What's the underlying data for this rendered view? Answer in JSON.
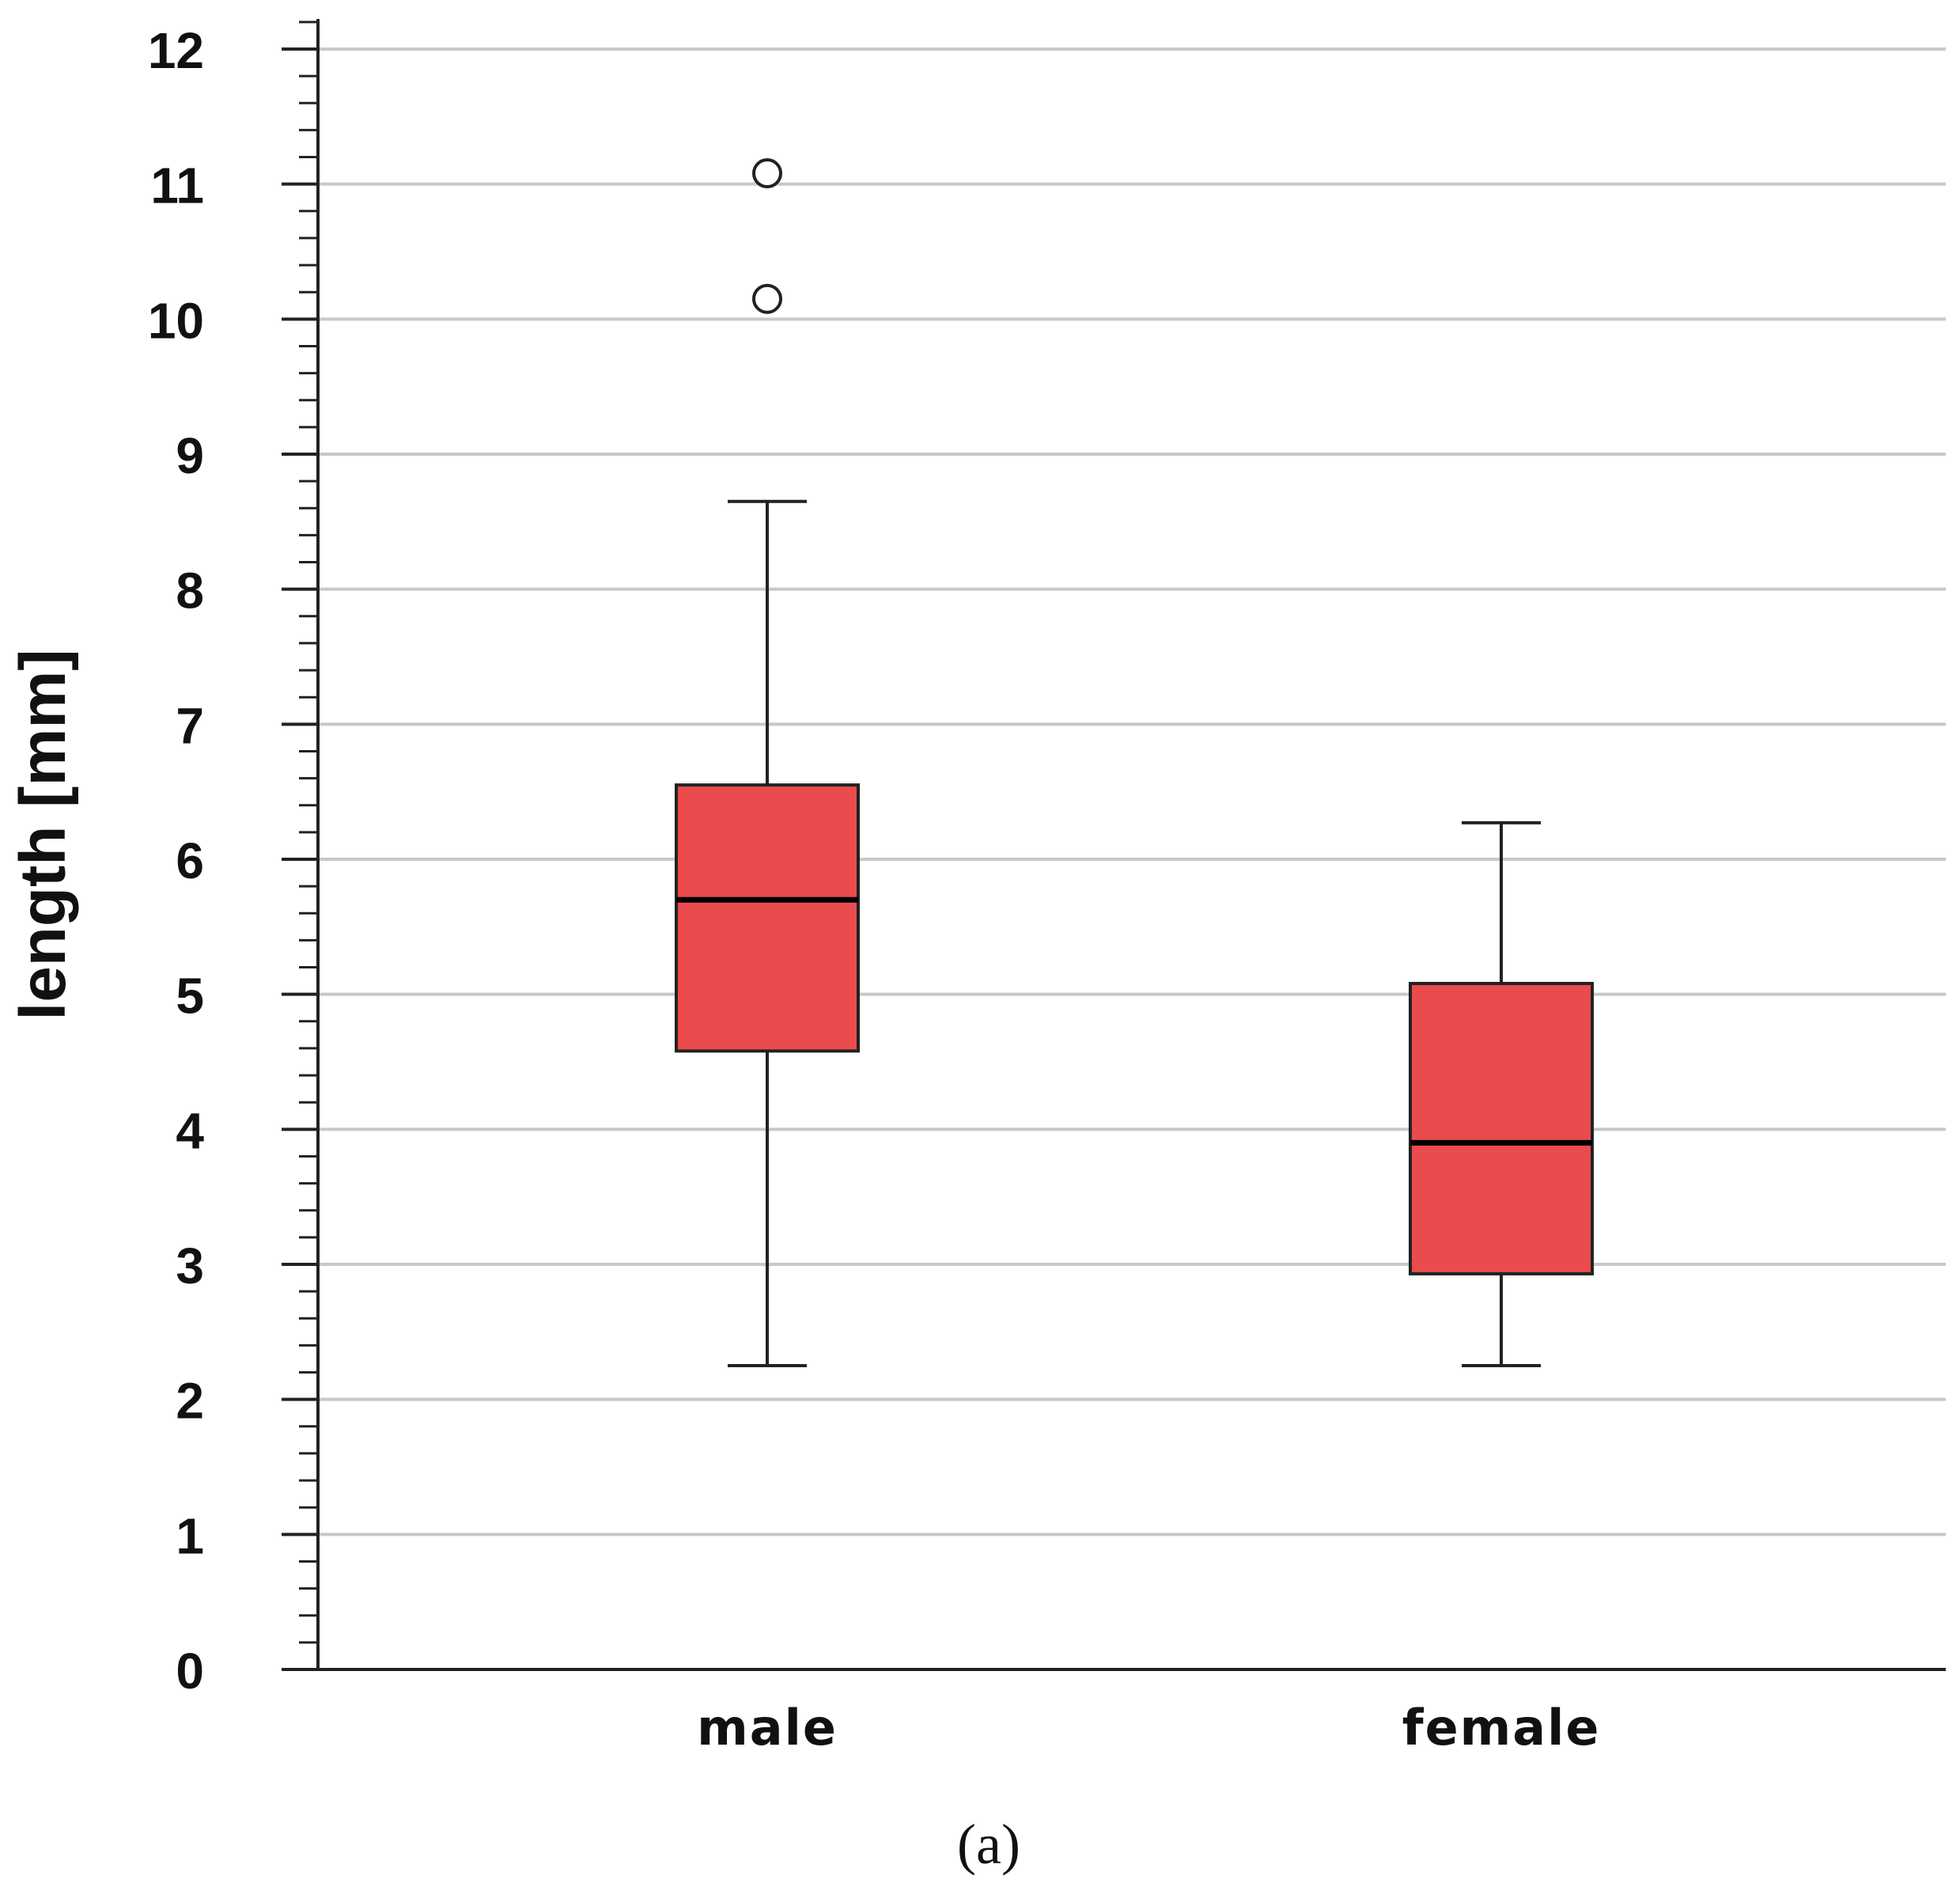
{
  "chart_data": {
    "type": "box",
    "ylabel": "length [mm]",
    "xlabel": "",
    "ylim": [
      0,
      12
    ],
    "y_ticks": [
      "0",
      "1",
      "2",
      "3",
      "4",
      "5",
      "6",
      "7",
      "8",
      "9",
      "10",
      "11",
      "12"
    ],
    "grid": true,
    "categories": [
      "male",
      "female"
    ],
    "boxes": [
      {
        "name": "male",
        "whisker_low": 2.25,
        "q1": 4.58,
        "median": 5.7,
        "q3": 6.55,
        "whisker_high": 8.65,
        "outliers": [
          10.15,
          11.08
        ]
      },
      {
        "name": "female",
        "whisker_low": 2.25,
        "q1": 2.93,
        "median": 3.9,
        "q3": 5.08,
        "whisker_high": 6.27,
        "outliers": []
      }
    ],
    "caption": "(a)"
  },
  "colors": {
    "box_fill": "#ea4b4c",
    "box_stroke": "#222222",
    "grid": "#c8c8c8",
    "axis": "#222222"
  }
}
